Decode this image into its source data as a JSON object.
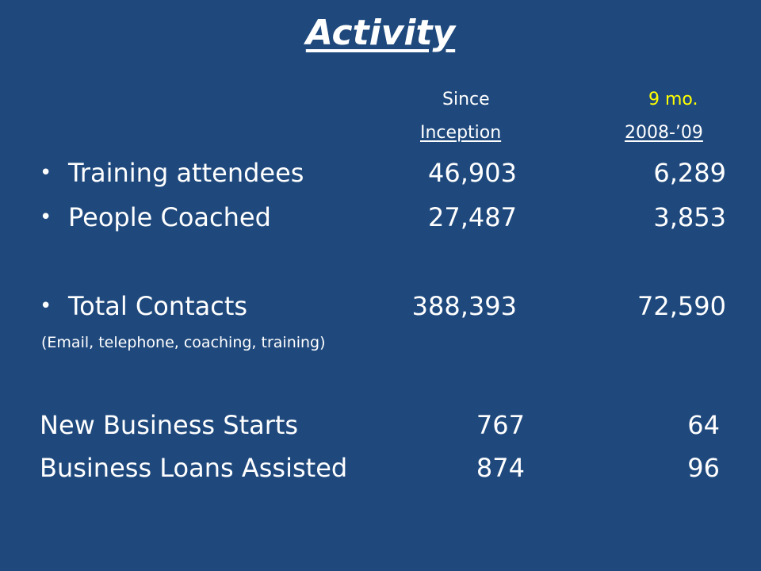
{
  "slide": {
    "title": "Activity",
    "columns": {
      "since_line1": "Since",
      "since_line2": "Inception",
      "period_line1": "9 mo.",
      "period_line2": "2008-’09"
    },
    "bulleted_rows": [
      {
        "label": "Training attendees",
        "since_inception": "46,903",
        "nine_months": "6,289"
      },
      {
        "label": "People Coached",
        "since_inception": "27,487",
        "nine_months": "3,853"
      },
      {
        "label": "Total Contacts",
        "since_inception": "388,393",
        "nine_months": "72,590"
      }
    ],
    "total_contacts_note": "(Email, telephone,  coaching, training)",
    "plain_rows": [
      {
        "label": "New Business Starts",
        "since_inception": "767",
        "nine_months": "64"
      },
      {
        "label": "Business Loans Assisted",
        "since_inception": "874",
        "nine_months": "96"
      }
    ],
    "colors": {
      "background": "#1f497d",
      "text": "#ffffff",
      "highlight": "#ffff00"
    }
  }
}
